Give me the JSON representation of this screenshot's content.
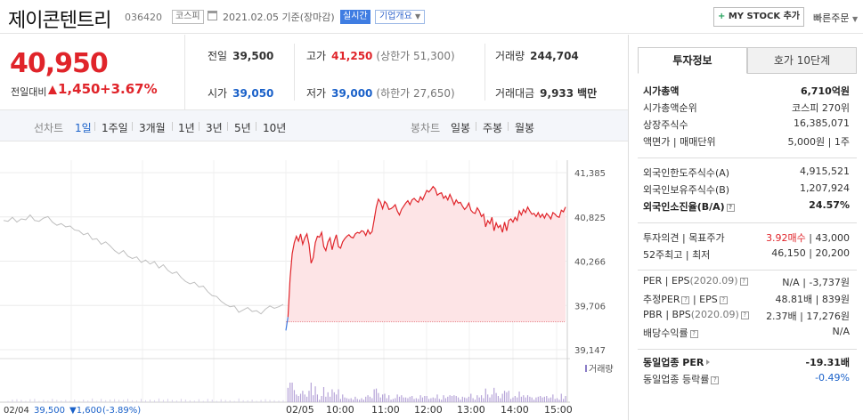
{
  "header": {
    "stock_name": "제이콘텐트리",
    "stock_code": "036420",
    "market": "코스피",
    "date": "2021.02.05 기준(장마감)",
    "realtime": "실시간",
    "company_overview": "기업개요",
    "mystock_label": "MY STOCK 추가",
    "quick_order": "빠른주문"
  },
  "price": {
    "current": "40,950",
    "change_label": "전일대비",
    "change_amount": "1,450",
    "change_rate": "+3.67%"
  },
  "stats": {
    "prev_close_label": "전일",
    "prev_close": "39,500",
    "high_label": "고가",
    "high": "41,250",
    "upper_limit": "(상한가 51,300)",
    "volume_label": "거래량",
    "volume": "244,704",
    "open_label": "시가",
    "open": "39,050",
    "low_label": "저가",
    "low": "39,000",
    "lower_limit": "(하한가 27,650)",
    "amount_label": "거래대금",
    "amount": "9,933",
    "amount_unit": "백만"
  },
  "chart_tabs": {
    "line_label": "선차트",
    "periods": [
      "1일",
      "1주일",
      "3개월",
      "1년",
      "3년",
      "5년",
      "10년"
    ],
    "candle_label": "봉차트",
    "candles": [
      "일봉",
      "주봉",
      "월봉"
    ]
  },
  "chart_data": {
    "type": "line",
    "y_ticks": [
      "41,385",
      "40,825",
      "40,266",
      "39,706",
      "39,147"
    ],
    "ylim": [
      39147,
      41385
    ],
    "prev_close": 39500,
    "prev_day": {
      "label": "02/04",
      "points": [
        40780,
        40770,
        40820,
        40760,
        40800,
        40790,
        40850,
        40780,
        40770,
        40810,
        40830,
        40760,
        40720,
        40740,
        40700,
        40710,
        40660,
        40650,
        40600,
        40620,
        40540,
        40550,
        40480,
        40510,
        40460,
        40400,
        40360,
        40400,
        40330,
        40300,
        40320,
        40250,
        40280,
        40230,
        40260,
        40180,
        40220,
        40150,
        40110,
        40130,
        40060,
        40010,
        39980,
        40000,
        39940,
        39950,
        39880,
        39830,
        39820,
        39760,
        39720,
        39690,
        39700,
        39620,
        39650,
        39680,
        39630,
        39640,
        39600,
        39660,
        39700,
        39670,
        39690,
        39720
      ]
    },
    "today": {
      "label": "02/05",
      "times": [
        "10:00",
        "11:00",
        "12:00",
        "13:00",
        "14:00",
        "15:00"
      ],
      "points": [
        39390,
        39560,
        40050,
        40360,
        40500,
        40580,
        40520,
        40610,
        40480,
        40560,
        40610,
        40480,
        40240,
        40310,
        40500,
        40580,
        40570,
        40630,
        40450,
        40400,
        40510,
        40560,
        40410,
        40520,
        40600,
        40450,
        40430,
        40510,
        40550,
        40580,
        40600,
        40570,
        40560,
        40610,
        40630,
        40620,
        40650,
        40640,
        40590,
        40660,
        40610,
        40640,
        40790,
        40950,
        41050,
        41010,
        40930,
        41020,
        40990,
        40920,
        40930,
        40950,
        40980,
        40900,
        40850,
        40920,
        40960,
        41000,
        41030,
        40980,
        41040,
        41060,
        41030,
        41010,
        41080,
        41040,
        41100,
        41160,
        41140,
        41170,
        41210,
        41180,
        41100,
        41120,
        41130,
        41060,
        41090,
        41040,
        41110,
        41050,
        40980,
        41040,
        41000,
        41010,
        40960,
        40920,
        40950,
        41000,
        40910,
        40880,
        40870,
        40940,
        40900,
        40830,
        40860,
        40700,
        40780,
        40740,
        40820,
        40650,
        40750,
        40690,
        40720,
        40630,
        40760,
        40650,
        40780,
        40800,
        40760,
        40820,
        40780,
        40900,
        40850,
        40920,
        40880,
        40950,
        40900,
        40860,
        40870,
        40830,
        40880,
        40820,
        40860,
        40810,
        40870,
        40840,
        40800,
        40880,
        40860,
        40830,
        40820,
        40910,
        40890,
        40950
      ]
    },
    "volume_label": "거래량",
    "bottom_label": "02/04",
    "bottom_price": "39,500",
    "bottom_change": "1,600",
    "bottom_rate": "(-3.89%)"
  },
  "right_panel": {
    "tabs": [
      "투자정보",
      "호가 10단계"
    ],
    "market_cap_label": "시가총액",
    "market_cap": "6,710억원",
    "market_rank_label": "시가총액순위",
    "market_rank": "코스피 270위",
    "shares_label": "상장주식수",
    "shares": "16,385,071",
    "par_label": "액면가",
    "unit_label": "매매단위",
    "par_value": "5,000원",
    "unit_value": "1주",
    "foreign_limit_label": "외국인한도주식수(A)",
    "foreign_limit": "4,915,521",
    "foreign_hold_label": "외국인보유주식수(B)",
    "foreign_hold": "1,207,924",
    "foreign_rate_label": "외국인소진율(B/A)",
    "foreign_rate": "24.57%",
    "opinion_label": "투자의견",
    "target_label": "목표주가",
    "opinion": "3.92매수",
    "target": "43,000",
    "week52_label": "52주최고",
    "week52_low_label": "최저",
    "week52_high": "46,150",
    "week52_low": "20,200",
    "per_label": "PER",
    "eps_label": "EPS",
    "per_year": "(2020.09)",
    "per": "N/A",
    "eps": "-3,737원",
    "est_per_label": "추정PER",
    "est_eps_label": "EPS",
    "est_per": "48.81배",
    "est_eps": "839원",
    "pbr_label": "PBR",
    "bps_label": "BPS",
    "bps_year": "(2020.09)",
    "pbr": "2.37배",
    "bps": "17,276원",
    "dividend_label": "배당수익률",
    "dividend": "N/A",
    "sector_per_label": "동일업종 PER",
    "sector_per": "-19.31배",
    "sector_rate_label": "동일업종 등락률",
    "sector_rate": "-0.49%"
  }
}
